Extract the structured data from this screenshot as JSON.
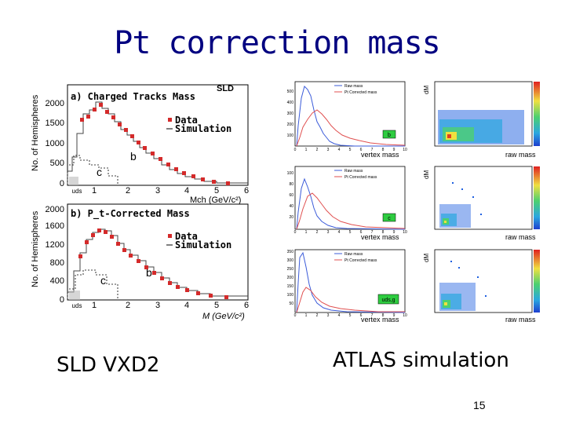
{
  "slide": {
    "title": "Pt correction mass",
    "caption_left": "SLD VXD2",
    "caption_right": "ATLAS simulation",
    "page_number": "15"
  },
  "sld_figure": {
    "tag": "SLD",
    "ylabel": "No. of Hemispheres",
    "top_panel": {
      "title": "a) Charged Tracks Mass",
      "xlabel": "Mch (GeV/c²)",
      "ytick_labels": [
        "2000",
        "1500",
        "1000",
        "500",
        "0"
      ],
      "xtick_labels": [
        "uds",
        "1",
        "2",
        "3",
        "4",
        "5",
        "6"
      ],
      "legend": [
        "Data",
        "Simulation"
      ],
      "region_labels": [
        "b",
        "c"
      ]
    },
    "bottom_panel": {
      "title": "b) P_t-Corrected Mass",
      "xlabel": "M (GeV/c²)",
      "ytick_labels": [
        "2000",
        "1600",
        "1200",
        "800",
        "400",
        "0"
      ],
      "xtick_labels": [
        "uds",
        "1",
        "2",
        "3",
        "4",
        "5",
        "6"
      ],
      "legend": [
        "Data",
        "Simulation"
      ],
      "region_labels": [
        "b",
        "c"
      ]
    }
  },
  "atlas_figure": {
    "rows": [
      {
        "flavour": "b",
        "xlabel": "vertex mass",
        "legend": [
          "Raw mass",
          "Pt Corrected mass"
        ],
        "ytick_labels": [
          "500",
          "400",
          "300",
          "200",
          "100"
        ],
        "xtick_labels": [
          "0",
          "1",
          "2",
          "3",
          "4",
          "5",
          "6",
          "7",
          "8",
          "9",
          "10"
        ],
        "scatter_xlabel": "raw mass",
        "scatter_ylabel": "dM"
      },
      {
        "flavour": "c",
        "xlabel": "vertex mass",
        "legend": [
          "Raw mass",
          "Pt Corrected mass"
        ],
        "ytick_labels": [
          "100",
          "80",
          "60",
          "40",
          "20"
        ],
        "xtick_labels": [
          "0",
          "1",
          "2",
          "3",
          "4",
          "5",
          "6",
          "7",
          "8",
          "9",
          "10"
        ],
        "scatter_xlabel": "raw mass",
        "scatter_ylabel": "dM"
      },
      {
        "flavour": "uds,g",
        "xlabel": "vertex mass",
        "legend": [
          "Raw mass",
          "Pt Corrected mass"
        ],
        "ytick_labels": [
          "350",
          "300",
          "250",
          "200",
          "150",
          "100",
          "50"
        ],
        "xtick_labels": [
          "0",
          "1",
          "2",
          "3",
          "4",
          "5",
          "6",
          "7",
          "8",
          "9",
          "10"
        ],
        "scatter_xlabel": "raw mass",
        "scatter_ylabel": "dM"
      }
    ],
    "colors": {
      "raw": "#3b5bd9",
      "corrected": "#e05050"
    }
  }
}
